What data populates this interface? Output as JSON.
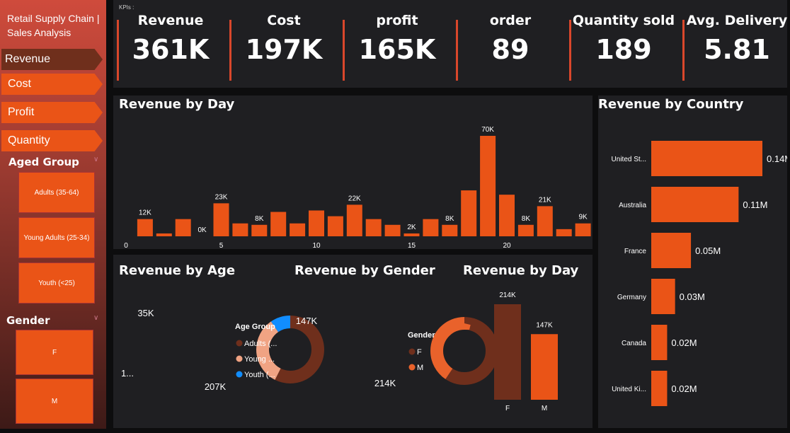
{
  "sidebar": {
    "title": "Retail Supply Chain | Sales Analysis",
    "nav": [
      "Revenue",
      "Cost",
      "Profit",
      "Quantity"
    ],
    "active": "Revenue",
    "age_group": {
      "label": "Aged Group",
      "options": [
        "Adults (35-64)",
        "Young Adults (25-34)",
        "Youth (<25)"
      ]
    },
    "gender": {
      "label": "Gender",
      "options": [
        "F",
        "M"
      ]
    }
  },
  "kpis": {
    "label": "KPIs :",
    "items": [
      {
        "label": "Revenue",
        "value": "361K"
      },
      {
        "label": "Cost",
        "value": "197K"
      },
      {
        "label": "profit",
        "value": "165K"
      },
      {
        "label": "order",
        "value": "89"
      },
      {
        "label": "Quantity sold",
        "value": "189"
      },
      {
        "label": "Avg. Delivery",
        "value": "5.81"
      }
    ]
  },
  "colors": {
    "accent": "#ea5417",
    "dark": "#6f2f1c",
    "light": "#f0a383",
    "blue": "#118dff"
  },
  "chart_data": [
    {
      "type": "bar",
      "title": "Revenue by Day",
      "x": [
        1,
        2,
        3,
        4,
        5,
        6,
        7,
        8,
        9,
        10,
        11,
        12,
        13,
        14,
        15,
        16,
        17,
        18,
        19,
        20,
        21,
        22,
        23,
        24
      ],
      "values": [
        12,
        2,
        12,
        0,
        23,
        9,
        8,
        17,
        9,
        18,
        14,
        22,
        12,
        8,
        2,
        12,
        8,
        32,
        70,
        29,
        8,
        21,
        5,
        9
      ],
      "unit": "K",
      "data_labels": {
        "1": "12K",
        "4": "0K",
        "5": "23K",
        "7": "8K",
        "12": "22K",
        "15": "2K",
        "17": "8K",
        "19": "70K",
        "21": "8K",
        "22": "21K",
        "24": "9K"
      },
      "xticks": [
        0,
        5,
        10,
        15,
        20
      ],
      "xlim": [
        0,
        24
      ]
    },
    {
      "type": "bar",
      "orientation": "horizontal",
      "title": "Revenue by Country",
      "categories": [
        "United St...",
        "Australia",
        "France",
        "Germany",
        "Canada",
        "United Ki..."
      ],
      "values": [
        0.14,
        0.11,
        0.05,
        0.03,
        0.02,
        0.02
      ],
      "labels": [
        "0.14M",
        "0.11M",
        "0.05M",
        "0.03M",
        "0.02M",
        "0.02M"
      ]
    },
    {
      "type": "pie",
      "donut": true,
      "title": "Revenue by Age",
      "legend_title": "Age Group",
      "categories": [
        "Adults (...",
        "Young ...",
        "Youth (..."
      ],
      "values": [
        207,
        119,
        35
      ],
      "labels": [
        "207K",
        "1...",
        "35K"
      ]
    },
    {
      "type": "pie",
      "donut": true,
      "title": "Revenue by Gender",
      "legend_title": "Gender",
      "categories": [
        "F",
        "M"
      ],
      "values": [
        214,
        147
      ],
      "labels": [
        "214K",
        "147K"
      ]
    },
    {
      "type": "bar",
      "title": "Revenue by Day",
      "categories": [
        "F",
        "M"
      ],
      "values": [
        214,
        147
      ],
      "labels": [
        "214K",
        "147K"
      ]
    }
  ]
}
